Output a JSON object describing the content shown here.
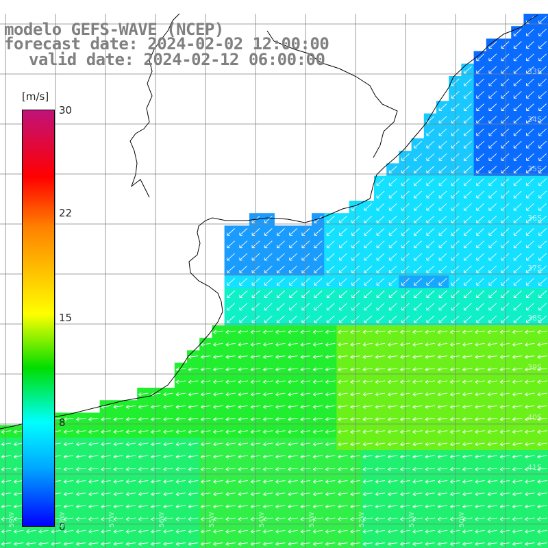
{
  "title": {
    "line1": "modelo GEFS-WAVE (NCEP)",
    "line2": "forecast date: 2024-02-02 12:00:00",
    "line3": "valid date: 2024-02-12 06:00:00"
  },
  "colorbar": {
    "unit": "[m/s]",
    "ticks": [
      "30",
      "22",
      "15",
      "8",
      "0"
    ]
  },
  "lat_labels": [
    "33S",
    "34S",
    "35S",
    "36S",
    "37S",
    "38S",
    "39S",
    "40S",
    "41S"
  ],
  "lon_labels": [
    "59W",
    "58W",
    "57W",
    "56W",
    "55W",
    "54W",
    "53W",
    "52W",
    "51W",
    "50W"
  ],
  "colors": {
    "land": "#ffffff",
    "grid": "#808080",
    "coast": "#000000",
    "arrows": "#ffffff"
  }
}
